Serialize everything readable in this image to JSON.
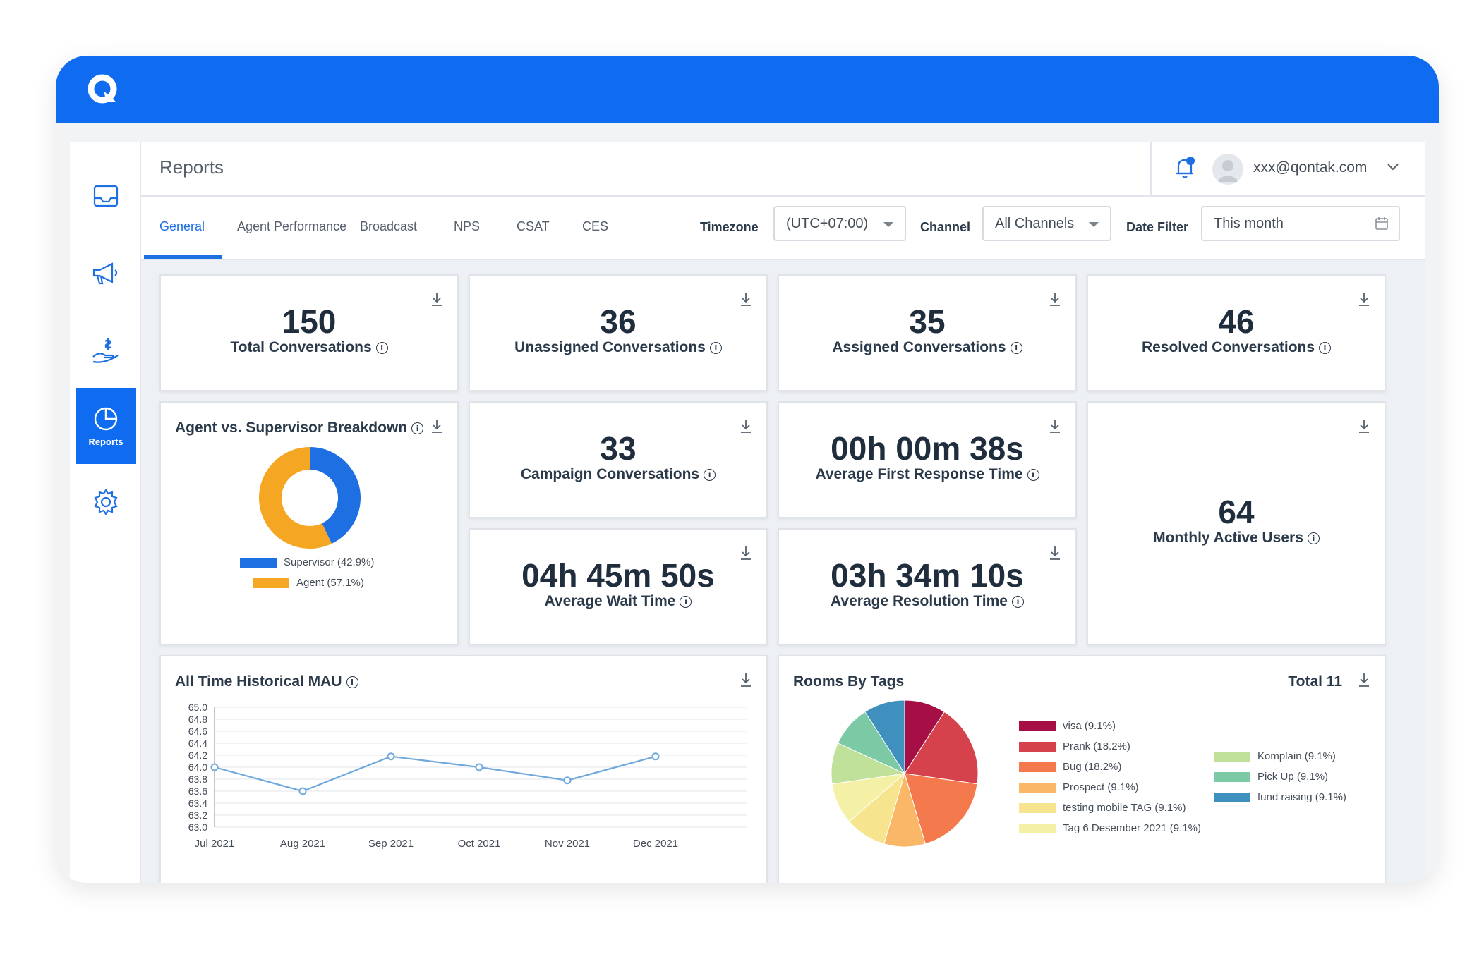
{
  "app": {
    "brand_color": "#0f6cf0"
  },
  "sidebar": {
    "items": [
      {
        "name": "inbox",
        "icon": "inbox-icon",
        "label": ""
      },
      {
        "name": "broadcast",
        "icon": "megaphone-icon",
        "label": ""
      },
      {
        "name": "leads",
        "icon": "hand-money-icon",
        "label": ""
      },
      {
        "name": "reports",
        "icon": "pie-chart-icon",
        "label": "Reports",
        "active": true
      },
      {
        "name": "settings",
        "icon": "gear-icon",
        "label": ""
      }
    ]
  },
  "header": {
    "title": "Reports",
    "user_email": "xxx@qontak.com"
  },
  "tabs": [
    {
      "label": "General",
      "active": true
    },
    {
      "label": "Agent Performance"
    },
    {
      "label": "Broadcast"
    },
    {
      "label": "NPS"
    },
    {
      "label": "CSAT"
    },
    {
      "label": "CES"
    }
  ],
  "filters": {
    "timezone_label": "Timezone",
    "timezone_value": "(UTC+07:00)",
    "channel_label": "Channel",
    "channel_value": "All Channels",
    "date_label": "Date Filter",
    "date_value": "This month"
  },
  "kpis": {
    "total": {
      "value": "150",
      "label": "Total Conversations"
    },
    "unassigned": {
      "value": "36",
      "label": "Unassigned Conversations"
    },
    "assigned": {
      "value": "35",
      "label": "Assigned Conversations"
    },
    "resolved": {
      "value": "46",
      "label": "Resolved Conversations"
    },
    "campaign": {
      "value": "33",
      "label": "Campaign Conversations"
    },
    "first_response": {
      "value": "00h 00m 38s",
      "label": "Average First Response Time"
    },
    "wait": {
      "value": "04h 45m 50s",
      "label": "Average Wait Time"
    },
    "resolution": {
      "value": "03h 34m 10s",
      "label": "Average Resolution Time"
    },
    "mau": {
      "value": "64",
      "label": "Monthly Active Users"
    }
  },
  "breakdown": {
    "title": "Agent vs. Supervisor Breakdown"
  },
  "mau_chart": {
    "title": "All Time Historical MAU"
  },
  "tags_chart": {
    "title": "Rooms By Tags",
    "total_label": "Total 11"
  },
  "chart_data": [
    {
      "type": "pie",
      "donut": true,
      "labels": [
        "Supervisor (42.9%)",
        "Agent (57.1%)"
      ],
      "categories": [
        "Supervisor",
        "Agent"
      ],
      "values": [
        42.9,
        57.1
      ],
      "colors": [
        "#1d6fe2",
        "#f5a623"
      ]
    },
    {
      "type": "line",
      "title": "All Time Historical MAU",
      "x": [
        "Jul 2021",
        "Aug 2021",
        "Sep 2021",
        "Oct 2021",
        "Nov 2021",
        "Dec 2021"
      ],
      "values": [
        64.0,
        63.6,
        64.18,
        64.0,
        63.78,
        64.18
      ],
      "ylim": [
        63.0,
        65.0
      ],
      "yticks": [
        "65.0",
        "64.8",
        "64.6",
        "64.4",
        "64.2",
        "64.0",
        "63.8",
        "63.6",
        "63.4",
        "63.2",
        "63.0"
      ],
      "grid": true,
      "color": "#6ea8dc"
    },
    {
      "type": "pie",
      "title": "Rooms By Tags",
      "categories": [
        "visa",
        "Prank",
        "Bug",
        "Prospect",
        "testing mobile TAG",
        "Tag 6 Desember 2021",
        "Komplain",
        "Pick Up",
        "fund raising"
      ],
      "labels": [
        "visa (9.1%)",
        "Prank (18.2%)",
        "Bug (18.2%)",
        "Prospect (9.1%)",
        "testing mobile TAG (9.1%)",
        "Tag 6 Desember 2021 (9.1%)",
        "Komplain (9.1%)",
        "Pick Up (9.1%)",
        "fund raising (9.1%)"
      ],
      "values": [
        9.1,
        18.2,
        18.2,
        9.1,
        9.1,
        9.1,
        9.1,
        9.1,
        9.1
      ],
      "colors": [
        "#a50f45",
        "#d6424b",
        "#f47a4e",
        "#fbb768",
        "#f7e48e",
        "#f4f1a6",
        "#bfe19a",
        "#7ccaa5",
        "#3f8fbf"
      ]
    }
  ]
}
